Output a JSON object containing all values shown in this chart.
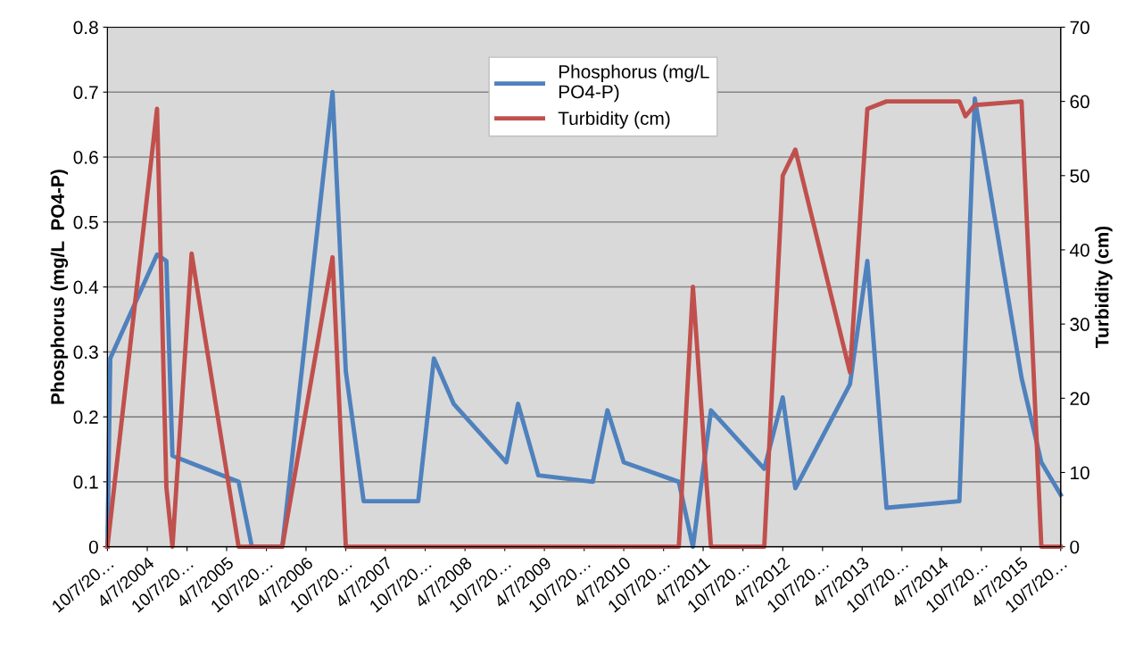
{
  "chart_data": {
    "type": "line",
    "ylabel": "Phosphorus (mg/L  PO4-P)",
    "y2label": "Turbidity (cm)",
    "series": [
      {
        "name": "Phosphorus (mg/L\nPO4-P)",
        "color": "#4f81bd",
        "x": [
          "2003-10-07",
          "2003-10-20",
          "2004-05-22",
          "2004-07-04",
          "2004-08-01",
          "2005-06-01",
          "2005-08-01",
          "2005-12-19",
          "2006-08-07",
          "2006-10-07",
          "2006-12-28",
          "2007-09-05",
          "2007-11-16",
          "2008-02-15",
          "2008-10-14",
          "2008-12-07",
          "2009-03-10",
          "2009-11-16",
          "2010-01-22",
          "2010-04-07",
          "2010-12-16",
          "2011-02-19",
          "2011-05-13",
          "2012-01-13",
          "2012-04-07",
          "2012-06-04",
          "2013-02-10",
          "2013-05-01",
          "2013-07-28",
          "2014-06-28",
          "2014-09-07",
          "2015-04-10",
          "2015-07-10",
          "2015-10-07"
        ],
        "values": [
          0,
          0.29,
          0.45,
          0.44,
          0.14,
          0.1,
          0,
          0,
          0.7,
          0.27,
          0.07,
          0.07,
          0.29,
          0.22,
          0.13,
          0.22,
          0.11,
          0.1,
          0.21,
          0.13,
          0.1,
          0,
          0.21,
          0.12,
          0.23,
          0.09,
          0.25,
          0.44,
          0.06,
          0.07,
          0.69,
          0.26,
          0.13,
          0.08
        ]
      },
      {
        "name": "Turbidity (cm)",
        "color": "#c0504d",
        "axis": "y2",
        "x": [
          "2003-10-07",
          "2004-05-22",
          "2004-07-04",
          "2004-08-01",
          "2004-10-28",
          "2005-06-01",
          "2005-12-19",
          "2006-08-07",
          "2006-10-07",
          "2010-12-16",
          "2011-02-19",
          "2011-05-13",
          "2012-01-13",
          "2012-04-07",
          "2012-06-04",
          "2013-02-10",
          "2013-05-01",
          "2013-07-28",
          "2014-06-28",
          "2014-07-26",
          "2014-09-07",
          "2015-04-10",
          "2015-07-10",
          "2015-10-07"
        ],
        "values": [
          0,
          59,
          8,
          0,
          39.5,
          0,
          0,
          39,
          0,
          0,
          35,
          0,
          0,
          50,
          53.5,
          23.5,
          59,
          60,
          60,
          58,
          59.5,
          60,
          0,
          0
        ]
      }
    ],
    "xlim": [
      "2003-10-07",
      "2015-10-07"
    ],
    "xticks": [
      {
        "value": "2003-10-07",
        "label": "10/7/20…"
      },
      {
        "value": "2004-04-07",
        "label": "4/7/2004"
      },
      {
        "value": "2004-10-07",
        "label": "10/7/20…"
      },
      {
        "value": "2005-04-07",
        "label": "4/7/2005"
      },
      {
        "value": "2005-10-07",
        "label": "10/7/20…"
      },
      {
        "value": "2006-04-07",
        "label": "4/7/2006"
      },
      {
        "value": "2006-10-07",
        "label": "10/7/20…"
      },
      {
        "value": "2007-04-07",
        "label": "4/7/2007"
      },
      {
        "value": "2007-10-07",
        "label": "10/7/20…"
      },
      {
        "value": "2008-04-07",
        "label": "4/7/2008"
      },
      {
        "value": "2008-10-07",
        "label": "10/7/20…"
      },
      {
        "value": "2009-04-07",
        "label": "4/7/2009"
      },
      {
        "value": "2009-10-07",
        "label": "10/7/20…"
      },
      {
        "value": "2010-04-07",
        "label": "4/7/2010"
      },
      {
        "value": "2010-10-07",
        "label": "10/7/20…"
      },
      {
        "value": "2011-04-07",
        "label": "4/7/2011"
      },
      {
        "value": "2011-10-07",
        "label": "10/7/20…"
      },
      {
        "value": "2012-04-07",
        "label": "4/7/2012"
      },
      {
        "value": "2012-10-07",
        "label": "10/7/20…"
      },
      {
        "value": "2013-04-07",
        "label": "4/7/2013"
      },
      {
        "value": "2013-10-07",
        "label": "10/7/20…"
      },
      {
        "value": "2014-04-07",
        "label": "4/7/2014"
      },
      {
        "value": "2014-10-07",
        "label": "10/7/20…"
      },
      {
        "value": "2015-04-07",
        "label": "4/7/2015"
      },
      {
        "value": "2015-10-07",
        "label": "10/7/20…"
      }
    ],
    "ylim": [
      0,
      0.8
    ],
    "yticks": [
      0,
      0.1,
      0.2,
      0.3,
      0.4,
      0.5,
      0.6,
      0.7,
      0.8
    ],
    "y2lim": [
      0,
      70
    ],
    "y2ticks": [
      0,
      10,
      20,
      30,
      40,
      50,
      60,
      70
    ],
    "grid": "y",
    "legend": "top",
    "marker": "none",
    "line_style": "solid"
  }
}
